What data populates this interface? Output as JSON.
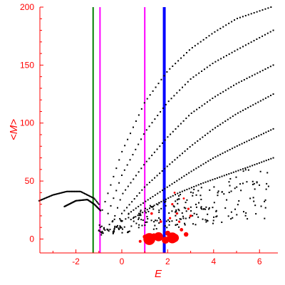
{
  "chart_data": {
    "type": "scatter",
    "title": "",
    "xlabel": "E",
    "ylabel": "<M>",
    "xlim": [
      -3.6,
      6.8
    ],
    "ylim": [
      -12,
      200
    ],
    "xticks": [
      -2,
      0,
      2,
      4,
      6
    ],
    "yticks": [
      0,
      50,
      100,
      150,
      200
    ],
    "grid": false,
    "colors": {
      "axis": "#ff0000",
      "points": "#000000",
      "highlight": "#ff0000",
      "line_green": "#008000",
      "line_magenta": "#ff00ff",
      "line_blue": "#0000ff"
    },
    "vertical_lines": [
      {
        "x": -1.25,
        "color": "#008000"
      },
      {
        "x": -0.95,
        "color": "#ff00ff"
      },
      {
        "x": 1.0,
        "color": "#ff00ff"
      },
      {
        "x": 1.85,
        "color": "#0000ff",
        "bold": true
      }
    ],
    "series": [
      {
        "type": "curve-points",
        "x_range": [
          -0.85,
          6.5
        ],
        "values_at": [
          [
            -0.85,
            25
          ],
          [
            0,
            75
          ],
          [
            1,
            118
          ],
          [
            2,
            145
          ],
          [
            3,
            164
          ],
          [
            4,
            178
          ],
          [
            5,
            190
          ],
          [
            6.5,
            200
          ]
        ]
      },
      {
        "type": "curve-points",
        "x_range": [
          -0.6,
          6.6
        ],
        "values_at": [
          [
            -0.6,
            22
          ],
          [
            0,
            55
          ],
          [
            1,
            92
          ],
          [
            2,
            118
          ],
          [
            3,
            138
          ],
          [
            4,
            152
          ],
          [
            5,
            163
          ],
          [
            6.6,
            180
          ]
        ]
      },
      {
        "type": "curve-points",
        "x_range": [
          -0.3,
          6.6
        ],
        "values_at": [
          [
            -0.3,
            20
          ],
          [
            0,
            38
          ],
          [
            1,
            65
          ],
          [
            2,
            88
          ],
          [
            3,
            108
          ],
          [
            4,
            122
          ],
          [
            5,
            134
          ],
          [
            6.6,
            150
          ]
        ]
      },
      {
        "type": "curve-points",
        "x_range": [
          0,
          6.6
        ],
        "values_at": [
          [
            0,
            22
          ],
          [
            1,
            45
          ],
          [
            2,
            63
          ],
          [
            3,
            80
          ],
          [
            4,
            95
          ],
          [
            5,
            108
          ],
          [
            6.6,
            125
          ]
        ]
      },
      {
        "type": "curve-points",
        "x_range": [
          0.3,
          6.6
        ],
        "values_at": [
          [
            0.3,
            22
          ],
          [
            1,
            32
          ],
          [
            2,
            45
          ],
          [
            3,
            58
          ],
          [
            4,
            70
          ],
          [
            5,
            80
          ],
          [
            6.6,
            95
          ]
        ]
      },
      {
        "type": "curve-points",
        "x_range": [
          0.5,
          6.6
        ],
        "values_at": [
          [
            0.5,
            18
          ],
          [
            1.5,
            30
          ],
          [
            2.5,
            40
          ],
          [
            3.5,
            48
          ],
          [
            4.5,
            55
          ],
          [
            5.5,
            62
          ],
          [
            6.6,
            70
          ]
        ]
      },
      {
        "type": "curve-points",
        "x_range": [
          -3.6,
          -1.0
        ],
        "values_at": [
          [
            -3.6,
            33
          ],
          [
            -3,
            38
          ],
          [
            -2.4,
            41
          ],
          [
            -1.8,
            41
          ],
          [
            -1.2,
            35
          ],
          [
            -1.0,
            30
          ]
        ]
      },
      {
        "type": "curve-points",
        "x_range": [
          -2.5,
          -0.9
        ],
        "values_at": [
          [
            -2.5,
            28
          ],
          [
            -2,
            33
          ],
          [
            -1.5,
            34
          ],
          [
            -1.2,
            30
          ],
          [
            -0.9,
            24
          ]
        ]
      }
    ],
    "highlight_points": [
      [
        1.2,
        0,
        4.2
      ],
      [
        1.6,
        2,
        3.2
      ],
      [
        1.9,
        -1,
        2.5
      ],
      [
        2.2,
        1,
        3.8
      ],
      [
        2.3,
        1,
        3.0
      ],
      [
        2.8,
        4,
        1.6
      ],
      [
        0.8,
        -2,
        1.0
      ],
      [
        1.0,
        2,
        1.4
      ],
      [
        1.4,
        3,
        1.6
      ],
      [
        2.0,
        5,
        1.8
      ],
      [
        2.6,
        8,
        1.2
      ],
      [
        1.7,
        15,
        0.9
      ],
      [
        2.1,
        18,
        0.8
      ],
      [
        2.4,
        22,
        0.8
      ],
      [
        2.9,
        26,
        0.8
      ],
      [
        3.0,
        20,
        0.9
      ],
      [
        2.2,
        30,
        0.8
      ],
      [
        2.5,
        15,
        0.8
      ],
      [
        1.3,
        22,
        0.9
      ],
      [
        2.7,
        35,
        0.7
      ],
      [
        2.3,
        40,
        0.7
      ]
    ]
  }
}
